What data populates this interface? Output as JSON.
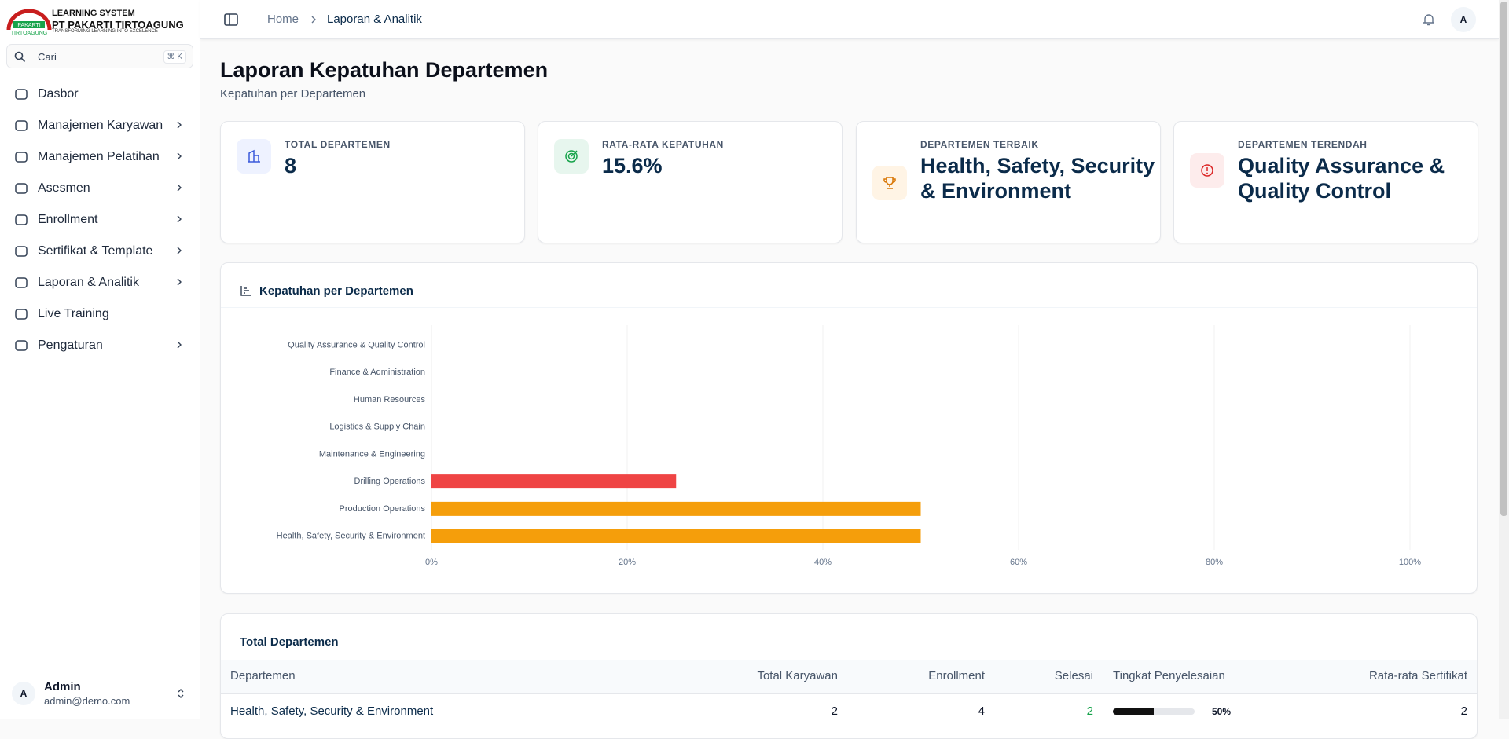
{
  "sidebar": {
    "logo": {
      "mark": "PAKARTI",
      "mark_sub": "TIRTOAGUNG",
      "line1": "LEARNING SYSTEM",
      "line2": "PT PAKARTI TIRTOAGUNG",
      "line3": "TRANSFORMING LEARNING INTO EXCELENCE"
    },
    "search": {
      "placeholder": "Cari",
      "shortcut": "⌘ K"
    },
    "menu": [
      {
        "label": "Dasbor",
        "submenu": false
      },
      {
        "label": "Manajemen Karyawan",
        "submenu": true
      },
      {
        "label": "Manajemen Pelatihan",
        "submenu": true
      },
      {
        "label": "Asesmen",
        "submenu": true
      },
      {
        "label": "Enrollment",
        "submenu": true
      },
      {
        "label": "Sertifikat & Template",
        "submenu": true
      },
      {
        "label": "Laporan & Analitik",
        "submenu": true
      },
      {
        "label": "Live Training",
        "submenu": false
      },
      {
        "label": "Pengaturan",
        "submenu": true
      }
    ],
    "user": {
      "initial": "A",
      "name": "Admin",
      "email": "admin@demo.com"
    }
  },
  "header": {
    "breadcrumb": [
      "Home",
      "Laporan & Analitik"
    ],
    "avatar": "A"
  },
  "page": {
    "title": "Laporan Kepatuhan Departemen",
    "subtitle": "Kepatuhan per Departemen"
  },
  "cards": [
    {
      "label": "TOTAL DEPARTEMEN",
      "value": "8"
    },
    {
      "label": "RATA-RATA KEPATUHAN",
      "value": "15.6%"
    },
    {
      "label": "DEPARTEMEN TERBAIK",
      "value": "Health, Safety, Security & Environment"
    },
    {
      "label": "DEPARTEMEN TERENDAH",
      "value": "Quality Assurance & Quality Control"
    }
  ],
  "chart_card": {
    "title": "Kepatuhan per Departemen"
  },
  "chart_data": {
    "type": "hbar",
    "categories": [
      "Quality Assurance & Quality Control",
      "Finance & Administration",
      "Human Resources",
      "Logistics & Supply Chain",
      "Maintenance & Engineering",
      "Drilling Operations",
      "Production Operations",
      "Health, Safety, Security & Environment"
    ],
    "values": [
      0,
      0,
      0,
      0,
      0,
      25,
      50,
      50
    ],
    "colors": [
      "#ef4444",
      "#ef4444",
      "#ef4444",
      "#ef4444",
      "#ef4444",
      "#ef4444",
      "#f59e0b",
      "#f59e0b"
    ],
    "xlim": [
      0,
      100
    ],
    "xticks": [
      {
        "value": 0,
        "label": "0%"
      },
      {
        "value": 20,
        "label": "20%"
      },
      {
        "value": 40,
        "label": "40%"
      },
      {
        "value": 60,
        "label": "60%"
      },
      {
        "value": 80,
        "label": "80%"
      },
      {
        "value": 100,
        "label": "100%"
      }
    ],
    "grid": true
  },
  "table": {
    "title": "Total Departemen",
    "columns": [
      "Departemen",
      "Total Karyawan",
      "Enrollment",
      "Selesai",
      "Tingkat Penyelesaian",
      "Rata-rata Sertifikat"
    ],
    "rows": [
      [
        "Health, Safety, Security & Environment",
        2,
        4,
        2,
        {
          "value": 50,
          "label": "50%"
        },
        2
      ]
    ]
  }
}
